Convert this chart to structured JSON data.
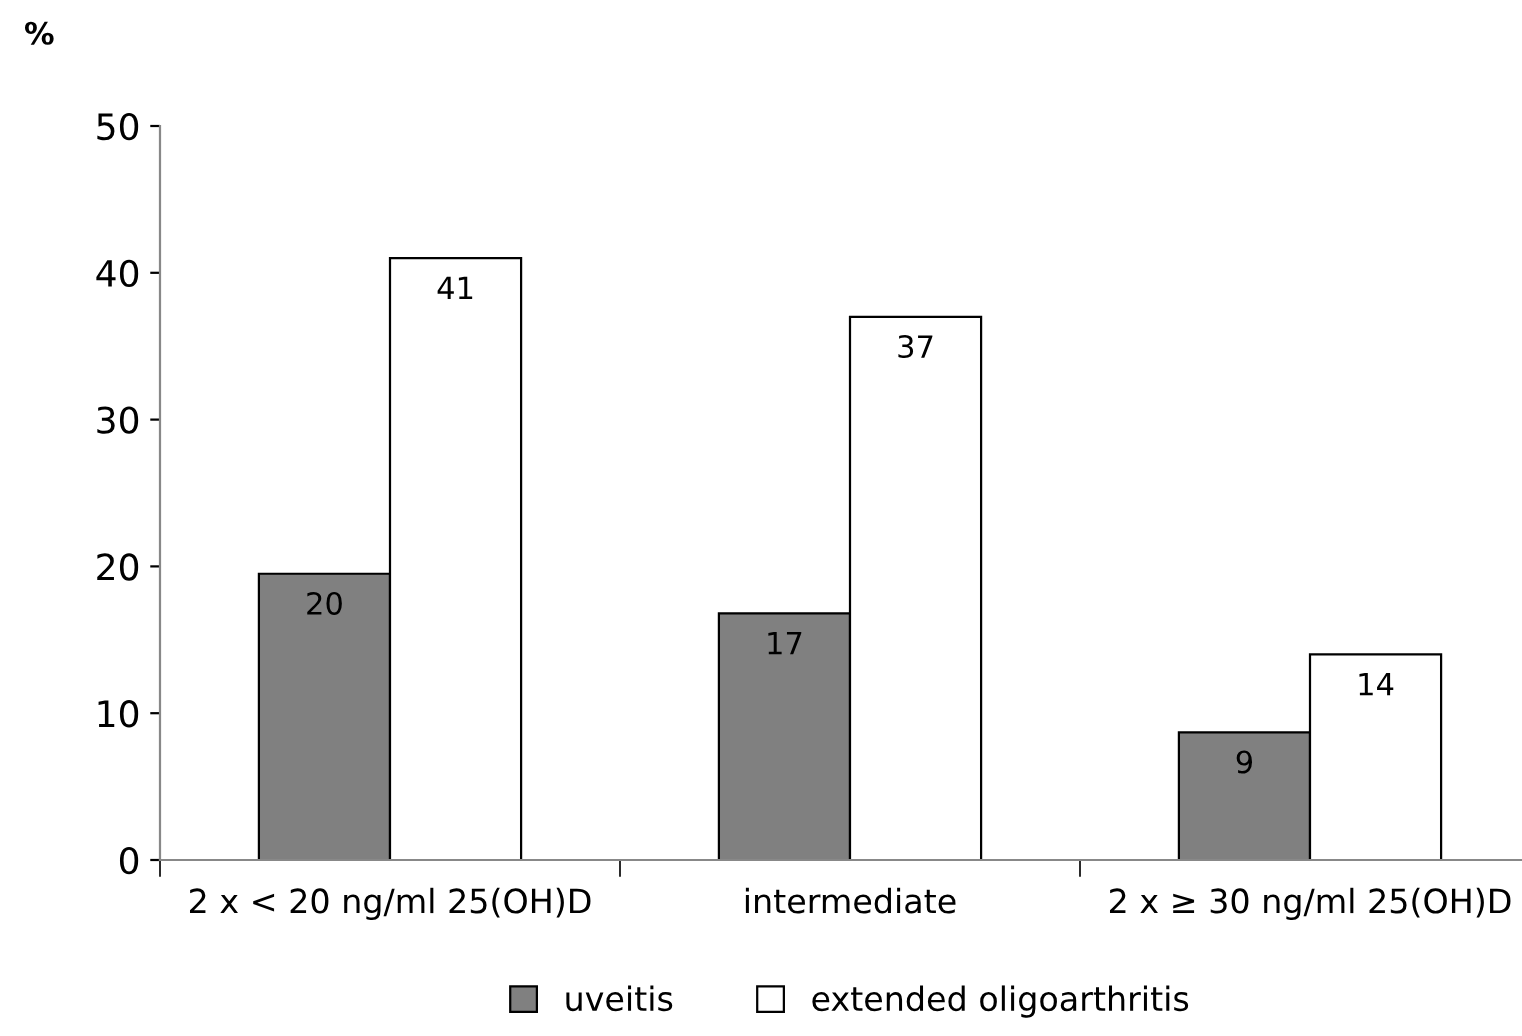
{
  "chart_data": {
    "type": "bar",
    "ylabel": "%",
    "categories": [
      "2 x < 20 ng/ml 25(OH)D",
      "intermediate",
      "2 x ≥ 30 ng/ml 25(OH)D"
    ],
    "series": [
      {
        "name": "uveitis",
        "color": "#808080",
        "values": [
          19.5,
          16.8,
          8.7
        ],
        "value_labels": [
          "20",
          "17",
          "9"
        ]
      },
      {
        "name": "extended oligoarthritis",
        "color": "#ffffff",
        "values": [
          41,
          37,
          14
        ],
        "value_labels": [
          "41",
          "37",
          "14"
        ]
      }
    ],
    "ylim": [
      0,
      50
    ],
    "yticks": [
      0,
      10,
      20,
      30,
      40,
      50
    ],
    "grid": false,
    "legend": "bottom"
  }
}
